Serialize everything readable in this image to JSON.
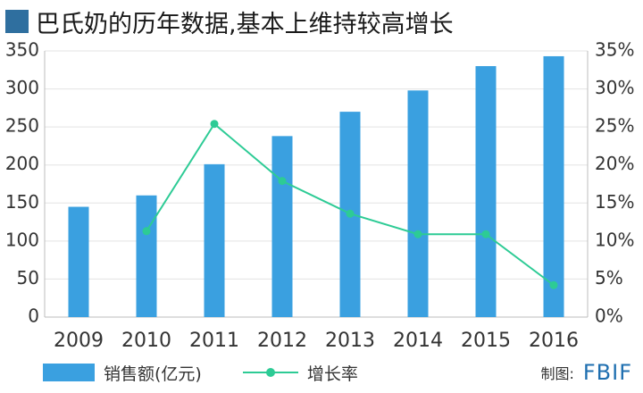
{
  "title": "巴氏奶的历年数据,基本上维持较高增长",
  "colors": {
    "title_square": "#2f6f9f",
    "bar": "#3aa0e0",
    "line": "#2dcb95",
    "grid": "#e3e3e3",
    "text": "#333333"
  },
  "legend": {
    "bar_label": "销售额(亿元)",
    "line_label": "增长率"
  },
  "credit": {
    "label": "制图:",
    "brand": "FBIF"
  },
  "chart_data": {
    "type": "bar+line",
    "title": "巴氏奶的历年数据,基本上维持较高增长",
    "categories": [
      "2009",
      "2010",
      "2011",
      "2012",
      "2013",
      "2014",
      "2015",
      "2016"
    ],
    "series": [
      {
        "name": "销售额(亿元)",
        "type": "bar",
        "axis": "left",
        "values": [
          145,
          160,
          201,
          238,
          270,
          298,
          330,
          343
        ]
      },
      {
        "name": "增长率",
        "type": "line",
        "axis": "right",
        "values": [
          null,
          11.3,
          25.4,
          17.9,
          13.6,
          10.9,
          10.9,
          4.2
        ]
      }
    ],
    "y_left": {
      "range": [
        0,
        350
      ],
      "ticks": [
        "0",
        "50",
        "100",
        "150",
        "200",
        "250",
        "300",
        "350"
      ]
    },
    "y_right": {
      "range": [
        0,
        35
      ],
      "ticks": [
        "0%",
        "5%",
        "10%",
        "15%",
        "20%",
        "25%",
        "30%",
        "35%"
      ]
    },
    "grid": true,
    "legend_position": "bottom-left"
  }
}
